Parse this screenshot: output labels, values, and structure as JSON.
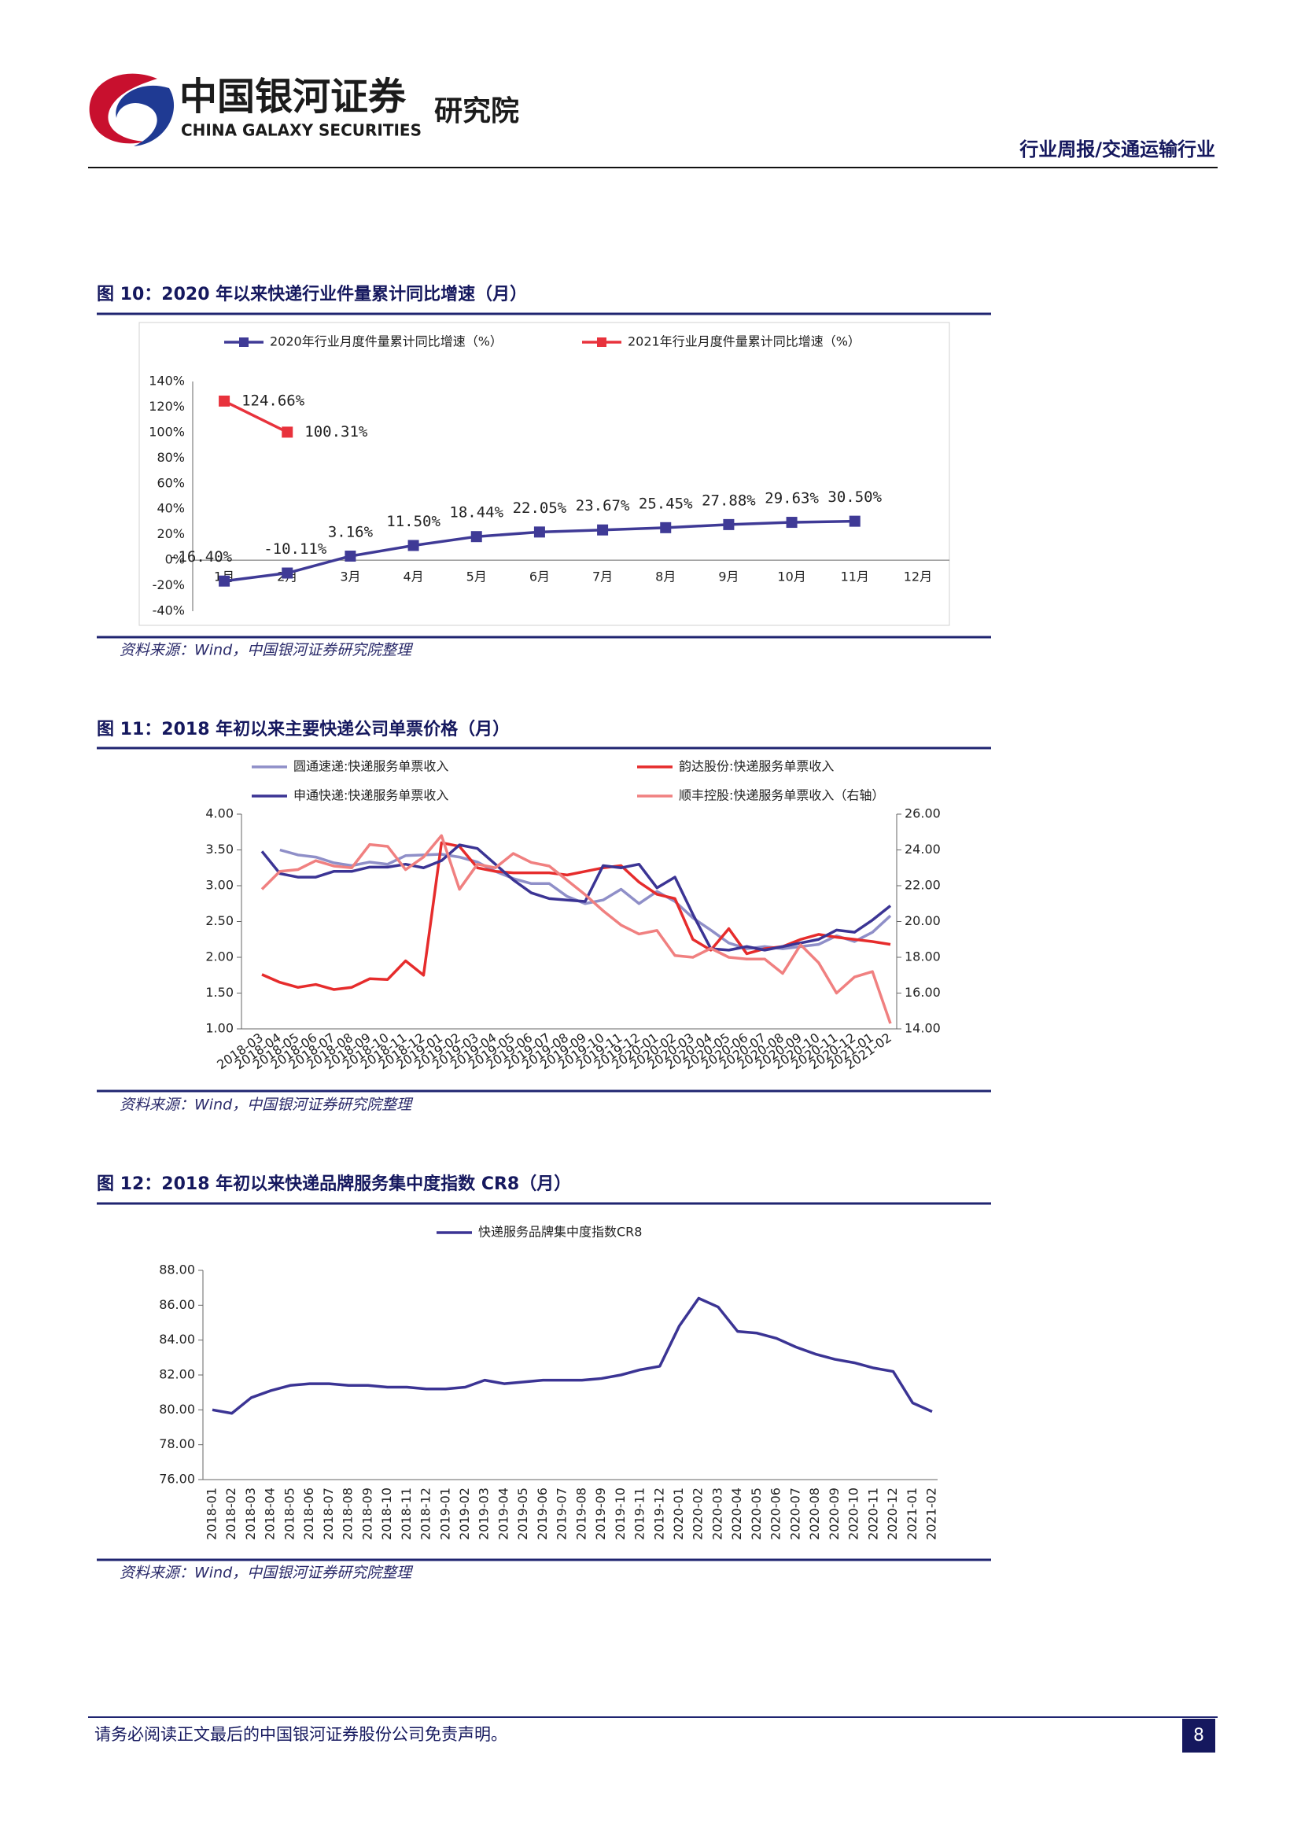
{
  "header": {
    "logo_cn": "中国银河证券",
    "logo_en": "CHINA GALAXY SECURITIES",
    "institute": "研究院",
    "report_type": "行业周报/交通运输行业"
  },
  "footer": {
    "disclaimer": "请务必阅读正文最后的中国银河证券股份公司免责声明。",
    "page": 8
  },
  "chart_data": [
    {
      "type": "line",
      "title": "图 10：2020 年以来快递行业件量累计同比增速（月）",
      "source": "资料来源：Wind，中国银河证券研究院整理",
      "marker": "square",
      "categories": [
        "1月",
        "2月",
        "3月",
        "4月",
        "5月",
        "6月",
        "7月",
        "8月",
        "9月",
        "10月",
        "11月",
        "12月"
      ],
      "series": [
        {
          "name": "2020年行业月度件量累计同比增速（%）",
          "color": "#3f3a96",
          "values": [
            -16.4,
            -10.11,
            3.16,
            11.5,
            18.44,
            22.05,
            23.67,
            25.45,
            27.88,
            29.63,
            30.5,
            null
          ],
          "value_labels": [
            "-16.40%",
            "-10.11%",
            "3.16%",
            "11.50%",
            "18.44%",
            "22.05%",
            "23.67%",
            "25.45%",
            "27.88%",
            "29.63%",
            "30.50%",
            null
          ]
        },
        {
          "name": "2021年行业月度件量累计同比增速（%）",
          "color": "#e8323c",
          "values": [
            124.66,
            100.31,
            null,
            null,
            null,
            null,
            null,
            null,
            null,
            null,
            null,
            null
          ],
          "value_labels": [
            "124.66%",
            "100.31%",
            null,
            null,
            null,
            null,
            null,
            null,
            null,
            null,
            null,
            null
          ]
        }
      ],
      "ylim": [
        -40,
        140
      ],
      "yticks": [
        {
          "value": -40,
          "label": "-40%"
        },
        {
          "value": -20,
          "label": "-20%"
        },
        {
          "value": 0,
          "label": "0%"
        },
        {
          "value": 20,
          "label": "20%"
        },
        {
          "value": 40,
          "label": "40%"
        },
        {
          "value": 60,
          "label": "60%"
        },
        {
          "value": 80,
          "label": "80%"
        },
        {
          "value": 100,
          "label": "100%"
        },
        {
          "value": 120,
          "label": "120%"
        },
        {
          "value": 140,
          "label": "140%"
        }
      ],
      "grid": false
    },
    {
      "type": "line",
      "title": "图 11：2018 年初以来主要快递公司单票价格（月）",
      "source": "资料来源：Wind，中国银河证券研究院整理",
      "categories": [
        "2018-03",
        "2018-04",
        "2018-05",
        "2018-06",
        "2018-07",
        "2018-08",
        "2018-09",
        "2018-10",
        "2018-11",
        "2018-12",
        "2019-01",
        "2019-02",
        "2019-03",
        "2019-04",
        "2019-05",
        "2019-06",
        "2019-07",
        "2019-08",
        "2019-09",
        "2019-10",
        "2019-11",
        "2019-12",
        "2020-01",
        "2020-02",
        "2020-03",
        "2020-04",
        "2020-05",
        "2020-06",
        "2020-07",
        "2020-08",
        "2020-09",
        "2020-10",
        "2020-11",
        "2020-12",
        "2021-01",
        "2021-02"
      ],
      "series": [
        {
          "name": "圆通速递:快递服务单票收入",
          "color": "#8f8fc8",
          "values": [
            null,
            3.5,
            3.43,
            3.4,
            3.32,
            3.28,
            3.33,
            3.3,
            3.42,
            3.43,
            3.44,
            3.4,
            3.33,
            3.2,
            3.1,
            3.03,
            3.03,
            2.85,
            2.75,
            2.8,
            2.95,
            2.75,
            2.92,
            2.78,
            2.55,
            2.38,
            2.2,
            2.12,
            2.15,
            2.12,
            2.15,
            2.18,
            2.3,
            2.22,
            2.35,
            2.58
          ]
        },
        {
          "name": "韵达股份:快递服务单票收入",
          "color": "#e62c2c",
          "values": [
            1.76,
            1.65,
            1.58,
            1.62,
            1.55,
            1.58,
            1.7,
            1.69,
            1.95,
            1.75,
            3.6,
            3.55,
            3.25,
            3.2,
            3.18,
            3.18,
            3.18,
            3.15,
            3.2,
            3.25,
            3.28,
            3.05,
            2.88,
            2.82,
            2.25,
            2.1,
            2.4,
            2.05,
            2.12,
            2.15,
            2.25,
            2.32,
            2.28,
            2.25,
            2.22,
            2.18
          ]
        },
        {
          "name": "申通快递:快递服务单票收入",
          "color": "#3b3494",
          "values": [
            3.48,
            3.17,
            3.12,
            3.12,
            3.2,
            3.2,
            3.26,
            3.26,
            3.3,
            3.25,
            3.35,
            3.57,
            3.52,
            3.3,
            3.08,
            2.9,
            2.82,
            2.8,
            2.78,
            3.28,
            3.25,
            3.3,
            2.97,
            3.12,
            2.6,
            2.12,
            2.1,
            2.15,
            2.1,
            2.15,
            2.2,
            2.25,
            2.38,
            2.35,
            2.52,
            2.72
          ]
        },
        {
          "name": "顺丰控股:快递服务单票收入（右轴）",
          "color": "#f08080",
          "axis": "y2",
          "values": [
            21.8,
            22.8,
            22.9,
            23.4,
            23.1,
            23.0,
            24.3,
            24.2,
            22.9,
            23.6,
            24.8,
            21.8,
            23.2,
            23.0,
            23.8,
            23.3,
            23.1,
            22.3,
            21.5,
            20.6,
            19.8,
            19.3,
            19.5,
            18.1,
            18.0,
            18.5,
            18.0,
            17.9,
            17.9,
            17.1,
            18.7,
            17.7,
            16.0,
            16.9,
            17.2,
            14.3
          ]
        }
      ],
      "ylim": [
        1,
        4
      ],
      "yticks": [
        {
          "value": 1,
          "label": "1.00"
        },
        {
          "value": 1.5,
          "label": "1.50"
        },
        {
          "value": 2,
          "label": "2.00"
        },
        {
          "value": 2.5,
          "label": "2.50"
        },
        {
          "value": 3,
          "label": "3.00"
        },
        {
          "value": 3.5,
          "label": "3.50"
        },
        {
          "value": 4,
          "label": "4.00"
        }
      ],
      "y2lim": [
        14,
        26
      ],
      "y2ticks": [
        {
          "value": 14,
          "label": "14.00"
        },
        {
          "value": 16,
          "label": "16.00"
        },
        {
          "value": 18,
          "label": "18.00"
        },
        {
          "value": 20,
          "label": "20.00"
        },
        {
          "value": 22,
          "label": "22.00"
        },
        {
          "value": 24,
          "label": "24.00"
        },
        {
          "value": 26,
          "label": "26.00"
        }
      ],
      "grid": false
    },
    {
      "type": "line",
      "title": "图 12：2018 年初以来快递品牌服务集中度指数 CR8（月）",
      "source": "资料来源：Wind，中国银河证券研究院整理",
      "categories": [
        "2018-01",
        "2018-02",
        "2018-03",
        "2018-04",
        "2018-05",
        "2018-06",
        "2018-07",
        "2018-08",
        "2018-09",
        "2018-10",
        "2018-11",
        "2018-12",
        "2019-01",
        "2019-02",
        "2019-03",
        "2019-04",
        "2019-05",
        "2019-06",
        "2019-07",
        "2019-08",
        "2019-09",
        "2019-10",
        "2019-11",
        "2019-12",
        "2020-01",
        "2020-02",
        "2020-03",
        "2020-04",
        "2020-05",
        "2020-06",
        "2020-07",
        "2020-08",
        "2020-09",
        "2020-10",
        "2020-11",
        "2020-12",
        "2021-01",
        "2021-02"
      ],
      "series": [
        {
          "name": "快递服务品牌集中度指数CR8",
          "color": "#3b3494",
          "values": [
            80.0,
            79.8,
            80.7,
            81.1,
            81.4,
            81.5,
            81.5,
            81.4,
            81.4,
            81.3,
            81.3,
            81.2,
            81.2,
            81.3,
            81.7,
            81.5,
            81.6,
            81.7,
            81.7,
            81.7,
            81.8,
            82.0,
            82.3,
            82.5,
            84.8,
            86.4,
            85.9,
            84.5,
            84.4,
            84.1,
            83.6,
            83.2,
            82.9,
            82.7,
            82.4,
            82.2,
            80.4,
            79.9
          ]
        }
      ],
      "ylim": [
        76,
        88
      ],
      "yticks": [
        {
          "value": 76,
          "label": "76.00"
        },
        {
          "value": 78,
          "label": "78.00"
        },
        {
          "value": 80,
          "label": "80.00"
        },
        {
          "value": 82,
          "label": "82.00"
        },
        {
          "value": 84,
          "label": "84.00"
        },
        {
          "value": 86,
          "label": "86.00"
        },
        {
          "value": 88,
          "label": "88.00"
        }
      ],
      "grid": false
    }
  ]
}
